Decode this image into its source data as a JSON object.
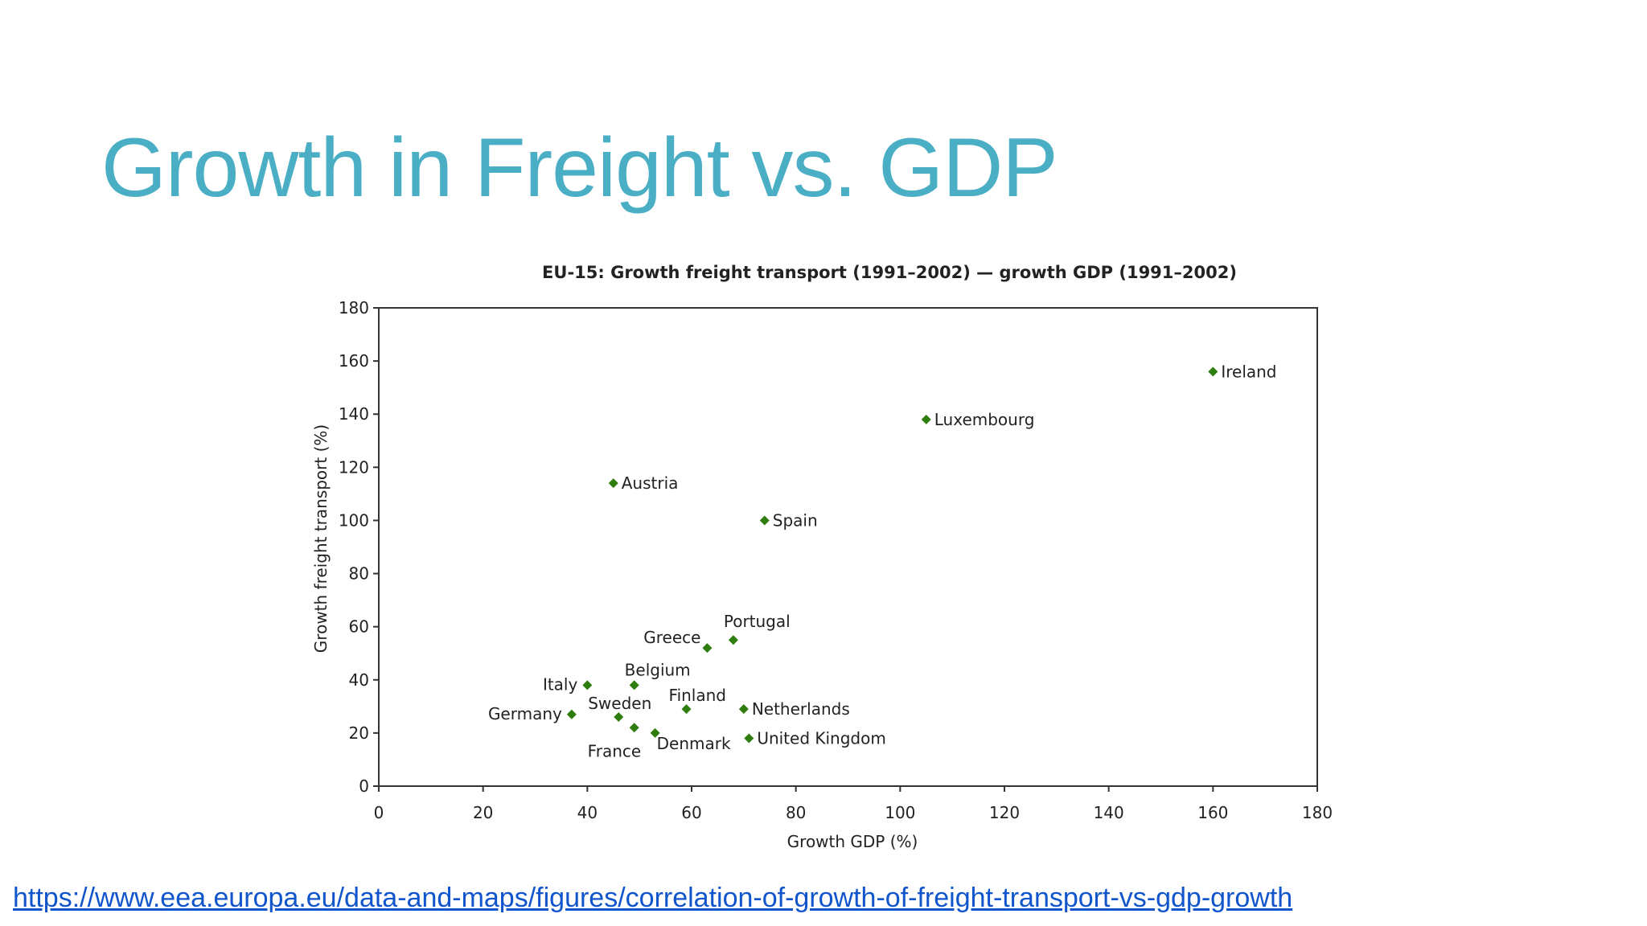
{
  "slide": {
    "title": "Growth in Freight vs. GDP",
    "source_link": "https://www.eea.europa.eu/data-and-maps/figures/correlation-of-growth-of-freight-transport-vs-gdp-growth"
  },
  "chart_data": {
    "type": "scatter",
    "title": "EU-15: Growth freight transport (1991–2002) — growth GDP (1991–2002)",
    "xlabel": "Growth GDP (%)",
    "ylabel": "Growth freight transport (%)",
    "xlim": [
      0,
      180
    ],
    "ylim": [
      0,
      180
    ],
    "xticks": [
      0,
      20,
      40,
      60,
      80,
      100,
      120,
      140,
      160,
      180
    ],
    "yticks": [
      0,
      20,
      40,
      60,
      80,
      100,
      120,
      140,
      160,
      180
    ],
    "grid": false,
    "marker_color": "#2e7d0e",
    "points": [
      {
        "label": "Ireland",
        "x": 160,
        "y": 156
      },
      {
        "label": "Luxembourg",
        "x": 105,
        "y": 138
      },
      {
        "label": "Austria",
        "x": 45,
        "y": 114
      },
      {
        "label": "Spain",
        "x": 74,
        "y": 100
      },
      {
        "label": "Portugal",
        "x": 68,
        "y": 55
      },
      {
        "label": "Greece",
        "x": 63,
        "y": 52
      },
      {
        "label": "Italy",
        "x": 40,
        "y": 38
      },
      {
        "label": "Belgium",
        "x": 49,
        "y": 38
      },
      {
        "label": "Finland",
        "x": 59,
        "y": 29
      },
      {
        "label": "Netherlands",
        "x": 70,
        "y": 29
      },
      {
        "label": "Germany",
        "x": 37,
        "y": 27
      },
      {
        "label": "Sweden",
        "x": 46,
        "y": 26
      },
      {
        "label": "France",
        "x": 49,
        "y": 22
      },
      {
        "label": "Denmark",
        "x": 53,
        "y": 20
      },
      {
        "label": "United Kingdom",
        "x": 71,
        "y": 18
      }
    ]
  }
}
